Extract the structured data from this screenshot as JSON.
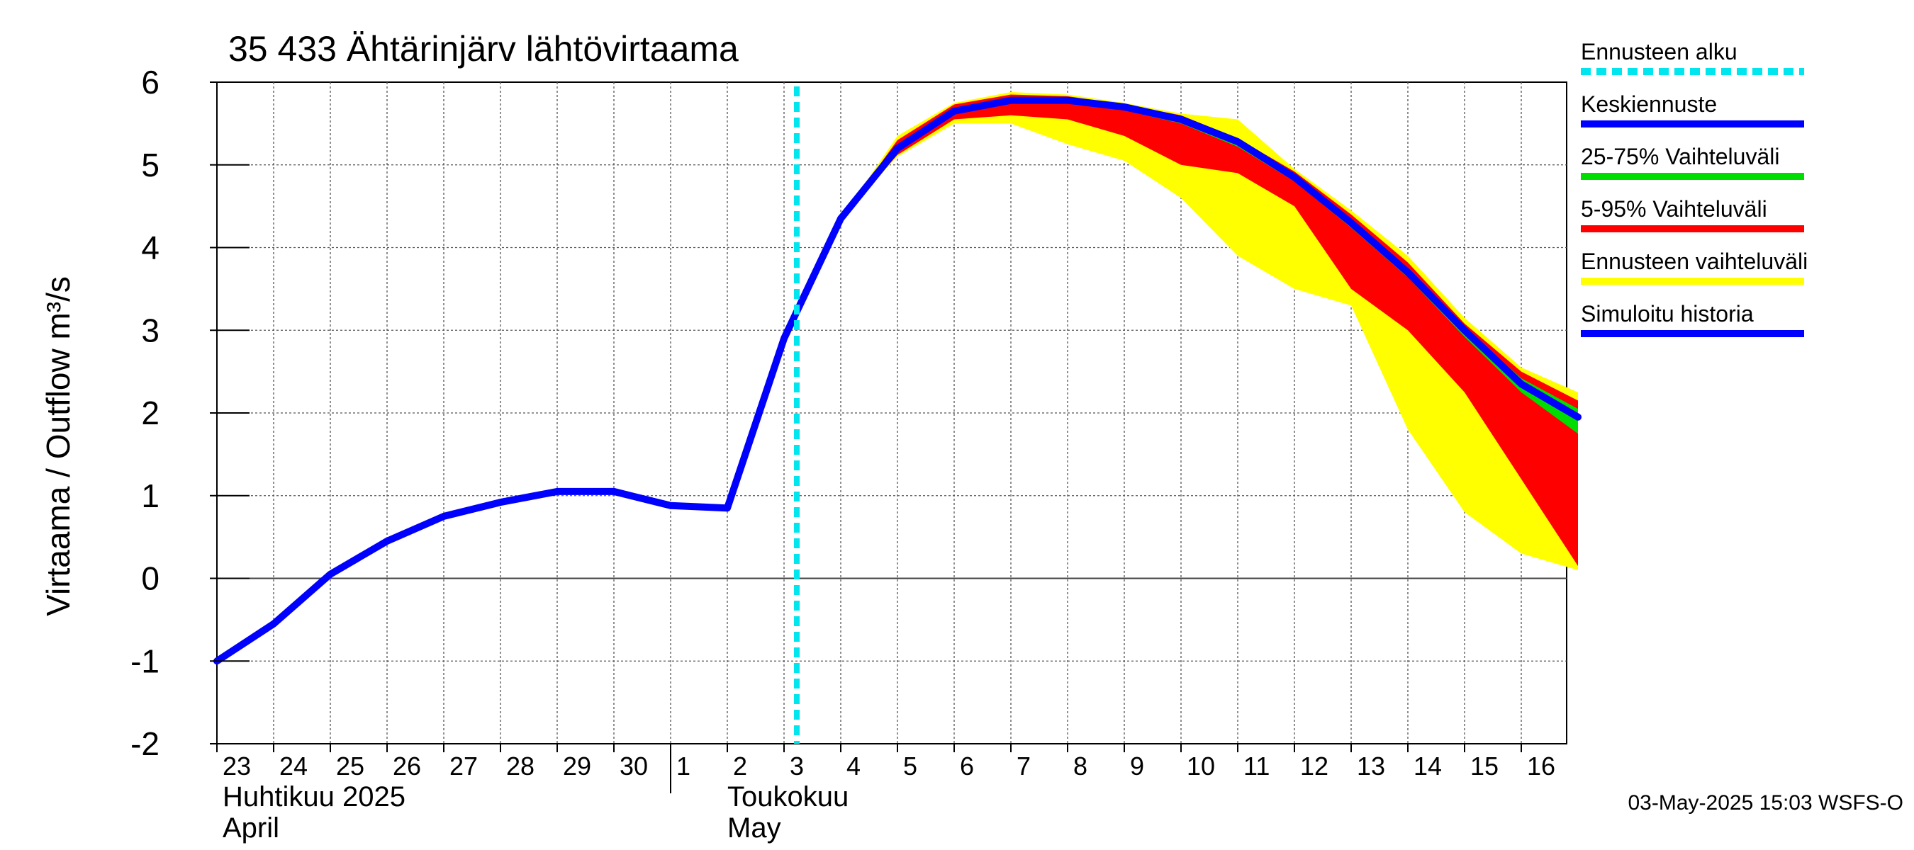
{
  "chart_data": {
    "type": "area",
    "title": "35 433 Ähtärinjärv lähtövirtaama",
    "ylabel": "Virtaama / Outflow   m³/s",
    "ylim": [
      -2,
      6
    ],
    "yticks": [
      "6",
      "5",
      "4",
      "3",
      "2",
      "1",
      "0",
      "-1",
      "-2"
    ],
    "xticks": [
      "23",
      "24",
      "25",
      "26",
      "27",
      "28",
      "29",
      "30",
      "1",
      "2",
      "3",
      "4",
      "5",
      "6",
      "7",
      "8",
      "9",
      "10",
      "11",
      "12",
      "13",
      "14",
      "15",
      "16"
    ],
    "month_labels": [
      {
        "line1": "Huhtikuu  2025",
        "line2": "April"
      },
      {
        "line1": "Toukokuu",
        "line2": "May"
      }
    ],
    "x_start": "2025-04-23",
    "forecast_start": "2025-05-03",
    "legend": [
      {
        "label": "Ennusteen alku",
        "color": "#00e5ee",
        "style": "dashed"
      },
      {
        "label": "Keskiennuste",
        "color": "#0000ff",
        "style": "solid"
      },
      {
        "label": "25-75% Vaihteluväli",
        "color": "#00dd00",
        "style": "solid"
      },
      {
        "label": "5-95% Vaihteluväli",
        "color": "#ff0000",
        "style": "solid"
      },
      {
        "label": "Ennusteen vaihteluväli",
        "color": "#ffff00",
        "style": "solid"
      },
      {
        "label": "Simuloitu historia",
        "color": "#0000ff",
        "style": "solid"
      }
    ],
    "series": [
      {
        "name": "Simuloitu historia",
        "x": [
          "2025-04-23",
          "2025-04-24",
          "2025-04-25",
          "2025-04-26",
          "2025-04-27",
          "2025-04-28",
          "2025-04-29",
          "2025-04-30",
          "2025-05-01",
          "2025-05-02",
          "2025-05-03",
          "2025-05-04"
        ],
        "values": [
          -1.0,
          -0.55,
          0.05,
          0.45,
          0.75,
          0.92,
          1.05,
          1.05,
          0.88,
          0.85,
          2.9,
          4.35
        ]
      },
      {
        "name": "Keskiennuste",
        "x": [
          "2025-05-04",
          "2025-05-05",
          "2025-05-06",
          "2025-05-07",
          "2025-05-08",
          "2025-05-09",
          "2025-05-10",
          "2025-05-11",
          "2025-05-12",
          "2025-05-13",
          "2025-05-14",
          "2025-05-15",
          "2025-05-16",
          "2025-05-17"
        ],
        "values": [
          4.35,
          5.2,
          5.65,
          5.78,
          5.78,
          5.7,
          5.55,
          5.28,
          4.85,
          4.3,
          3.7,
          3.0,
          2.35,
          1.95
        ]
      }
    ],
    "bands": [
      {
        "name": "Ennusteen vaihteluväli",
        "x": [
          "2025-05-04",
          "2025-05-05",
          "2025-05-06",
          "2025-05-07",
          "2025-05-08",
          "2025-05-09",
          "2025-05-10",
          "2025-05-11",
          "2025-05-12",
          "2025-05-13",
          "2025-05-14",
          "2025-05-15",
          "2025-05-16",
          "2025-05-17"
        ],
        "low": [
          4.35,
          5.1,
          5.5,
          5.5,
          5.25,
          5.05,
          4.6,
          3.9,
          3.5,
          3.3,
          1.8,
          0.8,
          0.3,
          0.1
        ],
        "high": [
          4.35,
          5.35,
          5.75,
          5.88,
          5.85,
          5.75,
          5.62,
          5.55,
          4.95,
          4.45,
          3.9,
          3.15,
          2.55,
          2.25
        ]
      },
      {
        "name": "5-95% Vaihteluväli",
        "x": [
          "2025-05-04",
          "2025-05-05",
          "2025-05-06",
          "2025-05-07",
          "2025-05-08",
          "2025-05-09",
          "2025-05-10",
          "2025-05-11",
          "2025-05-12",
          "2025-05-13",
          "2025-05-14",
          "2025-05-15",
          "2025-05-16",
          "2025-05-17"
        ],
        "low": [
          4.35,
          5.12,
          5.55,
          5.6,
          5.55,
          5.35,
          5.0,
          4.9,
          4.5,
          3.5,
          3.0,
          2.25,
          1.2,
          0.15
        ],
        "high": [
          4.35,
          5.3,
          5.73,
          5.85,
          5.83,
          5.73,
          5.6,
          5.32,
          4.92,
          4.4,
          3.82,
          3.08,
          2.5,
          2.15
        ]
      },
      {
        "name": "25-75% Vaihteluväli",
        "x": [
          "2025-05-04",
          "2025-05-05",
          "2025-05-06",
          "2025-05-07",
          "2025-05-08",
          "2025-05-09",
          "2025-05-10",
          "2025-05-11",
          "2025-05-12",
          "2025-05-13",
          "2025-05-14",
          "2025-05-15",
          "2025-05-16",
          "2025-05-17"
        ],
        "low": [
          4.35,
          5.18,
          5.62,
          5.75,
          5.74,
          5.66,
          5.5,
          5.22,
          4.8,
          4.24,
          3.64,
          2.92,
          2.25,
          1.75
        ],
        "high": [
          4.35,
          5.22,
          5.67,
          5.8,
          5.8,
          5.72,
          5.57,
          5.3,
          4.88,
          4.34,
          3.74,
          3.03,
          2.42,
          2.05
        ]
      }
    ],
    "grid": true
  },
  "footer": {
    "timestamp": "03-May-2025 15:03 WSFS-O"
  }
}
